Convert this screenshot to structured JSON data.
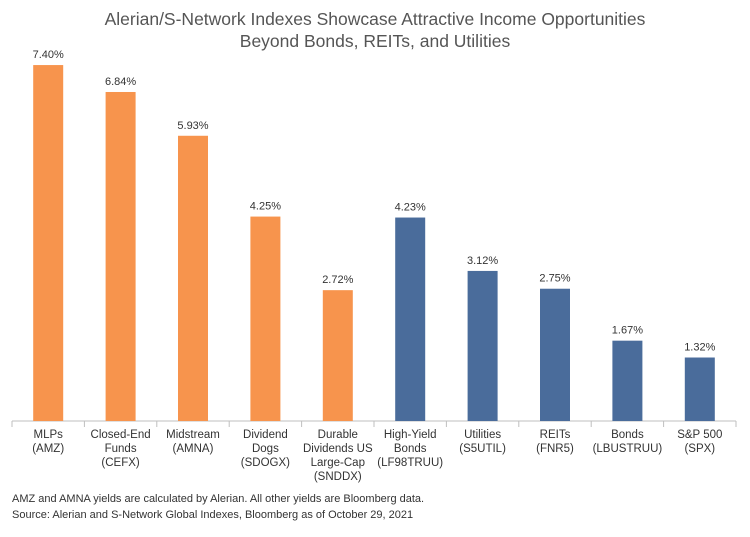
{
  "chart_data": {
    "type": "bar",
    "title_lines": [
      "Alerian/S-Network Indexes Showcase Attractive Income Opportunities",
      "Beyond Bonds, REITs, and Utilities"
    ],
    "categories": [
      [
        "MLPs",
        "(AMZ)"
      ],
      [
        "Closed-End",
        "Funds",
        "(CEFX)"
      ],
      [
        "Midstream",
        "(AMNA)"
      ],
      [
        "Dividend",
        "Dogs",
        "(SDOGX)"
      ],
      [
        "Durable",
        "Dividends US",
        "Large-Cap",
        "(SNDDX)"
      ],
      [
        "High-Yield",
        "Bonds",
        "(LF98TRUU)"
      ],
      [
        "Utilities",
        "(S5UTIL)"
      ],
      [
        "REITs",
        "(FNR5)"
      ],
      [
        "Bonds",
        "(LBUSTRUU)"
      ],
      [
        "S&P 500",
        "(SPX)"
      ]
    ],
    "values": [
      7.4,
      6.84,
      5.93,
      4.25,
      2.72,
      4.23,
      3.12,
      2.75,
      1.67,
      1.32
    ],
    "value_labels": [
      "7.40%",
      "6.84%",
      "5.93%",
      "4.25%",
      "2.72%",
      "4.23%",
      "3.12%",
      "2.75%",
      "1.67%",
      "1.32%"
    ],
    "bar_colors": [
      "#F7944D",
      "#F7944D",
      "#F7944D",
      "#F7944D",
      "#F7944D",
      "#4A6C9B",
      "#4A6C9B",
      "#4A6C9B",
      "#4A6C9B",
      "#4A6C9B"
    ],
    "ylim": [
      0,
      7.5
    ],
    "grid": false,
    "xlabel": "",
    "ylabel": ""
  },
  "notes": {
    "line1": "AMZ and AMNA yields are calculated by Alerian. All other yields are Bloomberg data.",
    "line2": "Source: Alerian and S-Network Global Indexes, Bloomberg as of October 29, 2021"
  },
  "colors": {
    "orange": "#F7944D",
    "blue": "#4A6C9B",
    "axis": "#BFBFBF"
  }
}
